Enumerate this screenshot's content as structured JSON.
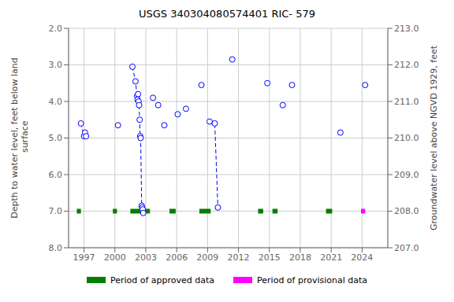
{
  "chart_data": {
    "type": "scatter",
    "title": "USGS 340304080574401 RIC- 579",
    "ylabel": "Depth to water level, feet below land\n surface",
    "y2label": "Groundwater level above NGVD 1929, feet",
    "xlim": [
      1995.5,
      2026.5
    ],
    "xticks": [
      1997,
      2000,
      2003,
      2006,
      2009,
      2012,
      2015,
      2018,
      2021,
      2024
    ],
    "ylim": [
      8,
      2
    ],
    "yticks": [
      {
        "value": 2,
        "label": "2.0"
      },
      {
        "value": 3,
        "label": "3.0"
      },
      {
        "value": 4,
        "label": "4.0"
      },
      {
        "value": 5,
        "label": "5.0"
      },
      {
        "value": 6,
        "label": "6.0"
      },
      {
        "value": 7,
        "label": "7.0"
      },
      {
        "value": 8,
        "label": "8.0"
      }
    ],
    "y2lim": [
      207,
      213
    ],
    "y2ticks": [
      {
        "value": 207,
        "label": "207.0"
      },
      {
        "value": 208,
        "label": "208.0"
      },
      {
        "value": 209,
        "label": "209.0"
      },
      {
        "value": 210,
        "label": "210.0"
      },
      {
        "value": 211,
        "label": "211.0"
      },
      {
        "value": 212,
        "label": "212.0"
      },
      {
        "value": 213,
        "label": "213.0"
      }
    ],
    "x": [
      1996.7,
      1997.0,
      1997.1,
      1997.2,
      2000.3,
      2001.7,
      2002.0,
      2002.15,
      2002.2,
      2002.25,
      2002.3,
      2002.35,
      2002.4,
      2002.45,
      2002.5,
      2002.6,
      2002.65,
      2002.7,
      2002.75,
      2003.7,
      2004.2,
      2004.8,
      2006.1,
      2006.9,
      2008.4,
      2009.2,
      2009.7,
      2010.0,
      2011.4,
      2014.8,
      2016.3,
      2017.2,
      2021.9,
      2024.3
    ],
    "values": [
      4.6,
      4.95,
      4.85,
      4.95,
      4.65,
      3.05,
      3.45,
      3.85,
      3.95,
      3.8,
      4.0,
      4.1,
      4.5,
      4.95,
      5.0,
      6.85,
      6.9,
      6.95,
      7.05,
      3.9,
      4.1,
      4.65,
      4.35,
      4.2,
      3.55,
      4.55,
      4.6,
      6.9,
      2.85,
      3.5,
      4.1,
      3.55,
      4.85,
      3.55
    ],
    "color": "blue",
    "marker": "open_circle",
    "line_style": "dashed",
    "line_segments": [
      [
        1996.7,
        1997.0,
        1997.1,
        1997.2
      ],
      [
        2001.7,
        2002.0,
        2002.15,
        2002.2,
        2002.25,
        2002.3,
        2002.35,
        2002.4,
        2002.45,
        2002.5,
        2002.6,
        2002.65,
        2002.7,
        2002.75
      ],
      [
        2009.2,
        2009.7,
        2010.0
      ]
    ],
    "periods": [
      {
        "name": "Period of approved data",
        "color": "#008000",
        "y": 7.0,
        "ranges": [
          [
            1996.3,
            1996.7
          ],
          [
            1999.8,
            2000.2
          ],
          [
            2001.5,
            2003.4
          ],
          [
            2005.3,
            2005.9
          ],
          [
            2008.2,
            2009.3
          ],
          [
            2013.9,
            2014.4
          ],
          [
            2015.3,
            2015.8
          ],
          [
            2020.5,
            2021.1
          ]
        ]
      },
      {
        "name": "Period of provisional data",
        "color": "#ff00ff",
        "y": 7.0,
        "ranges": [
          [
            2023.9,
            2024.3
          ]
        ]
      }
    ],
    "legend": "bottom",
    "grid": true
  }
}
